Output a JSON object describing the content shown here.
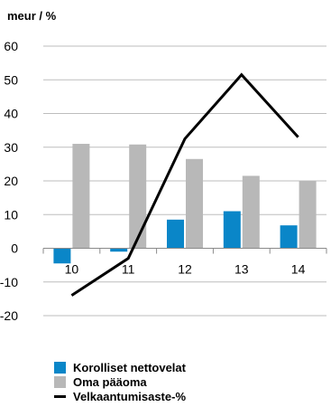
{
  "chart_data": {
    "type": "bar",
    "unit_label": "meur / %",
    "categories": [
      "10",
      "11",
      "12",
      "13",
      "14"
    ],
    "ylim": [
      -20,
      60
    ],
    "yticks": [
      "60",
      "50",
      "40",
      "30",
      "20",
      "10",
      "0",
      "-10",
      "-20"
    ],
    "grid": true,
    "legend_position": "bottom-left",
    "series": [
      {
        "name": "Korolliset nettovelat",
        "kind": "bar",
        "color": "#0a86c8",
        "values": [
          -4.5,
          -1,
          8.5,
          11,
          6.8
        ]
      },
      {
        "name": "Oma pääoma",
        "kind": "bar",
        "color": "#b8b8b8",
        "values": [
          31,
          30.8,
          26.5,
          21.5,
          20
        ]
      },
      {
        "name": "Velkaantumisaste-%",
        "kind": "line",
        "color": "#000000",
        "values": [
          -14,
          -3,
          32.5,
          51.5,
          33
        ]
      }
    ]
  }
}
